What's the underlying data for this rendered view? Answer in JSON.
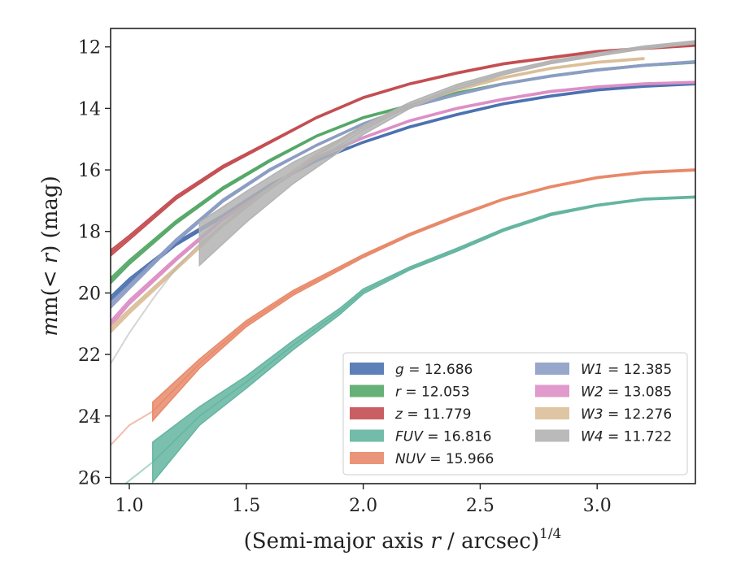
{
  "chart_data": {
    "type": "line",
    "title": "",
    "xlabel": "(Semi-major axis ",
    "xlabel_var": "r",
    "xlabel_rest": " / arcsec)",
    "xlabel_sup": "1/4",
    "ylabel_pre": "m(< ",
    "ylabel_var": "r",
    "ylabel_post": ") (mag)",
    "xlim": [
      0.92,
      3.42
    ],
    "ylim": [
      26.2,
      11.4
    ],
    "y_inverted": true,
    "xticks": [
      1.0,
      1.5,
      2.0,
      2.5,
      3.0
    ],
    "xtick_labels": [
      "1.0",
      "1.5",
      "2.0",
      "2.5",
      "3.0"
    ],
    "yticks": [
      12,
      14,
      16,
      18,
      20,
      22,
      24,
      26
    ],
    "ytick_labels": [
      "12",
      "14",
      "16",
      "18",
      "20",
      "22",
      "24",
      "26"
    ],
    "grid": false,
    "legend_placement": "lower-right",
    "series": [
      {
        "name": "g",
        "value": "12.686",
        "color": "#4c72b0",
        "x": [
          0.92,
          1.0,
          1.2,
          1.4,
          1.6,
          1.8,
          2.0,
          2.2,
          2.4,
          2.6,
          2.8,
          3.0,
          3.2,
          3.42
        ],
        "y": [
          20.2,
          19.6,
          18.4,
          17.5,
          16.5,
          15.7,
          15.1,
          14.6,
          14.2,
          13.85,
          13.6,
          13.4,
          13.28,
          13.2
        ],
        "halfwidth": [
          0.1,
          0.08,
          0.06,
          0.05,
          0.04,
          0.03,
          0.03,
          0.03,
          0.03,
          0.03,
          0.03,
          0.03,
          0.03,
          0.03
        ]
      },
      {
        "name": "r",
        "value": "12.053",
        "color": "#55a868",
        "x": [
          0.92,
          1.0,
          1.2,
          1.4,
          1.6,
          1.8,
          2.0,
          2.2,
          2.4,
          2.6,
          2.8,
          3.0,
          3.2,
          3.42
        ],
        "y": [
          19.6,
          19.0,
          17.7,
          16.6,
          15.7,
          14.9,
          14.3,
          13.9,
          13.5,
          13.2,
          12.95,
          12.75,
          12.6,
          12.5
        ],
        "halfwidth": [
          0.1,
          0.08,
          0.06,
          0.05,
          0.04,
          0.03,
          0.03,
          0.03,
          0.03,
          0.03,
          0.03,
          0.03,
          0.03,
          0.03
        ]
      },
      {
        "name": "z",
        "value": "11.779",
        "color": "#c44e52",
        "x": [
          0.92,
          1.0,
          1.2,
          1.4,
          1.6,
          1.8,
          2.0,
          2.2,
          2.4,
          2.6,
          2.8,
          3.0,
          3.2,
          3.42
        ],
        "y": [
          18.7,
          18.2,
          16.9,
          15.9,
          15.1,
          14.3,
          13.65,
          13.2,
          12.85,
          12.55,
          12.35,
          12.15,
          12.05,
          11.95
        ],
        "halfwidth": [
          0.1,
          0.08,
          0.06,
          0.05,
          0.04,
          0.03,
          0.03,
          0.03,
          0.03,
          0.03,
          0.03,
          0.03,
          0.03,
          0.03
        ]
      },
      {
        "name": "FUV",
        "value": "16.816",
        "color": "#64b5a0",
        "x": [
          1.1,
          1.3,
          1.5,
          1.7,
          1.9,
          2.0,
          2.2,
          2.4,
          2.6,
          2.8,
          3.0,
          3.2,
          3.42
        ],
        "y": [
          25.5,
          24.0,
          22.9,
          21.7,
          20.6,
          19.95,
          19.2,
          18.6,
          17.95,
          17.45,
          17.15,
          16.95,
          16.88
        ],
        "halfwidth": [
          0.65,
          0.3,
          0.2,
          0.15,
          0.1,
          0.08,
          0.05,
          0.05,
          0.04,
          0.04,
          0.03,
          0.03,
          0.03
        ],
        "faint_x": [
          0.92,
          1.0,
          1.1
        ],
        "faint_y": [
          26.6,
          26.1,
          25.5
        ]
      },
      {
        "name": "NUV",
        "value": "15.966",
        "color": "#e8896a",
        "x": [
          1.1,
          1.3,
          1.5,
          1.7,
          1.9,
          2.0,
          2.2,
          2.4,
          2.6,
          2.8,
          3.0,
          3.2,
          3.42
        ],
        "y": [
          23.85,
          22.3,
          21.0,
          20.0,
          19.2,
          18.8,
          18.1,
          17.5,
          16.95,
          16.55,
          16.25,
          16.08,
          16.0
        ],
        "halfwidth": [
          0.3,
          0.15,
          0.1,
          0.08,
          0.06,
          0.05,
          0.04,
          0.04,
          0.03,
          0.03,
          0.03,
          0.03,
          0.03
        ],
        "faint_x": [
          0.92,
          1.0,
          1.1
        ],
        "faint_y": [
          24.95,
          24.3,
          23.85
        ]
      },
      {
        "name": "W1",
        "value": "12.385",
        "color": "#8c9dc4",
        "x": [
          0.92,
          1.0,
          1.2,
          1.4,
          1.6,
          1.8,
          2.0,
          2.2,
          2.4,
          2.6,
          2.8,
          3.0,
          3.2,
          3.42
        ],
        "y": [
          20.4,
          19.8,
          18.3,
          17.0,
          16.0,
          15.2,
          14.5,
          13.95,
          13.55,
          13.2,
          12.95,
          12.75,
          12.6,
          12.48
        ],
        "halfwidth": [
          0.1,
          0.08,
          0.06,
          0.05,
          0.04,
          0.03,
          0.03,
          0.03,
          0.03,
          0.03,
          0.03,
          0.03,
          0.03,
          0.03
        ]
      },
      {
        "name": "W2",
        "value": "13.085",
        "color": "#dd8fc6",
        "x": [
          0.92,
          1.0,
          1.2,
          1.4,
          1.6,
          1.8,
          2.0,
          2.2,
          2.4,
          2.6,
          2.8,
          3.0,
          3.2,
          3.42
        ],
        "y": [
          21.0,
          20.3,
          18.9,
          17.6,
          16.6,
          15.6,
          14.95,
          14.4,
          14.0,
          13.7,
          13.45,
          13.3,
          13.2,
          13.15
        ],
        "halfwidth": [
          0.1,
          0.08,
          0.06,
          0.05,
          0.04,
          0.03,
          0.03,
          0.03,
          0.03,
          0.03,
          0.03,
          0.03,
          0.03,
          0.03
        ]
      },
      {
        "name": "W3",
        "value": "12.276",
        "color": "#dbbf99",
        "x": [
          0.92,
          1.0,
          1.2,
          1.4,
          1.6,
          1.8,
          2.0,
          2.2,
          2.4,
          2.6,
          2.8,
          3.0,
          3.2
        ],
        "y": [
          21.2,
          20.6,
          19.2,
          17.8,
          16.6,
          15.5,
          14.6,
          13.9,
          13.4,
          13.0,
          12.7,
          12.5,
          12.38
        ],
        "halfwidth": [
          0.1,
          0.08,
          0.06,
          0.05,
          0.04,
          0.03,
          0.03,
          0.03,
          0.03,
          0.03,
          0.03,
          0.03,
          0.03
        ]
      },
      {
        "name": "W4",
        "value": "11.722",
        "color": "#b3b3b3",
        "x": [
          1.3,
          1.5,
          1.7,
          1.9,
          2.0,
          2.2,
          2.4,
          2.6,
          2.8,
          3.0,
          3.2,
          3.42
        ],
        "y": [
          18.4,
          17.2,
          16.1,
          15.2,
          14.7,
          13.9,
          13.3,
          12.85,
          12.5,
          12.25,
          12.02,
          11.85
        ],
        "halfwidth": [
          0.7,
          0.5,
          0.35,
          0.2,
          0.15,
          0.1,
          0.08,
          0.06,
          0.05,
          0.05,
          0.05,
          0.05
        ],
        "faint_x": [
          0.92,
          1.0,
          1.1,
          1.2,
          1.3
        ],
        "faint_y": [
          22.3,
          21.3,
          20.2,
          19.2,
          18.4
        ]
      }
    ]
  }
}
